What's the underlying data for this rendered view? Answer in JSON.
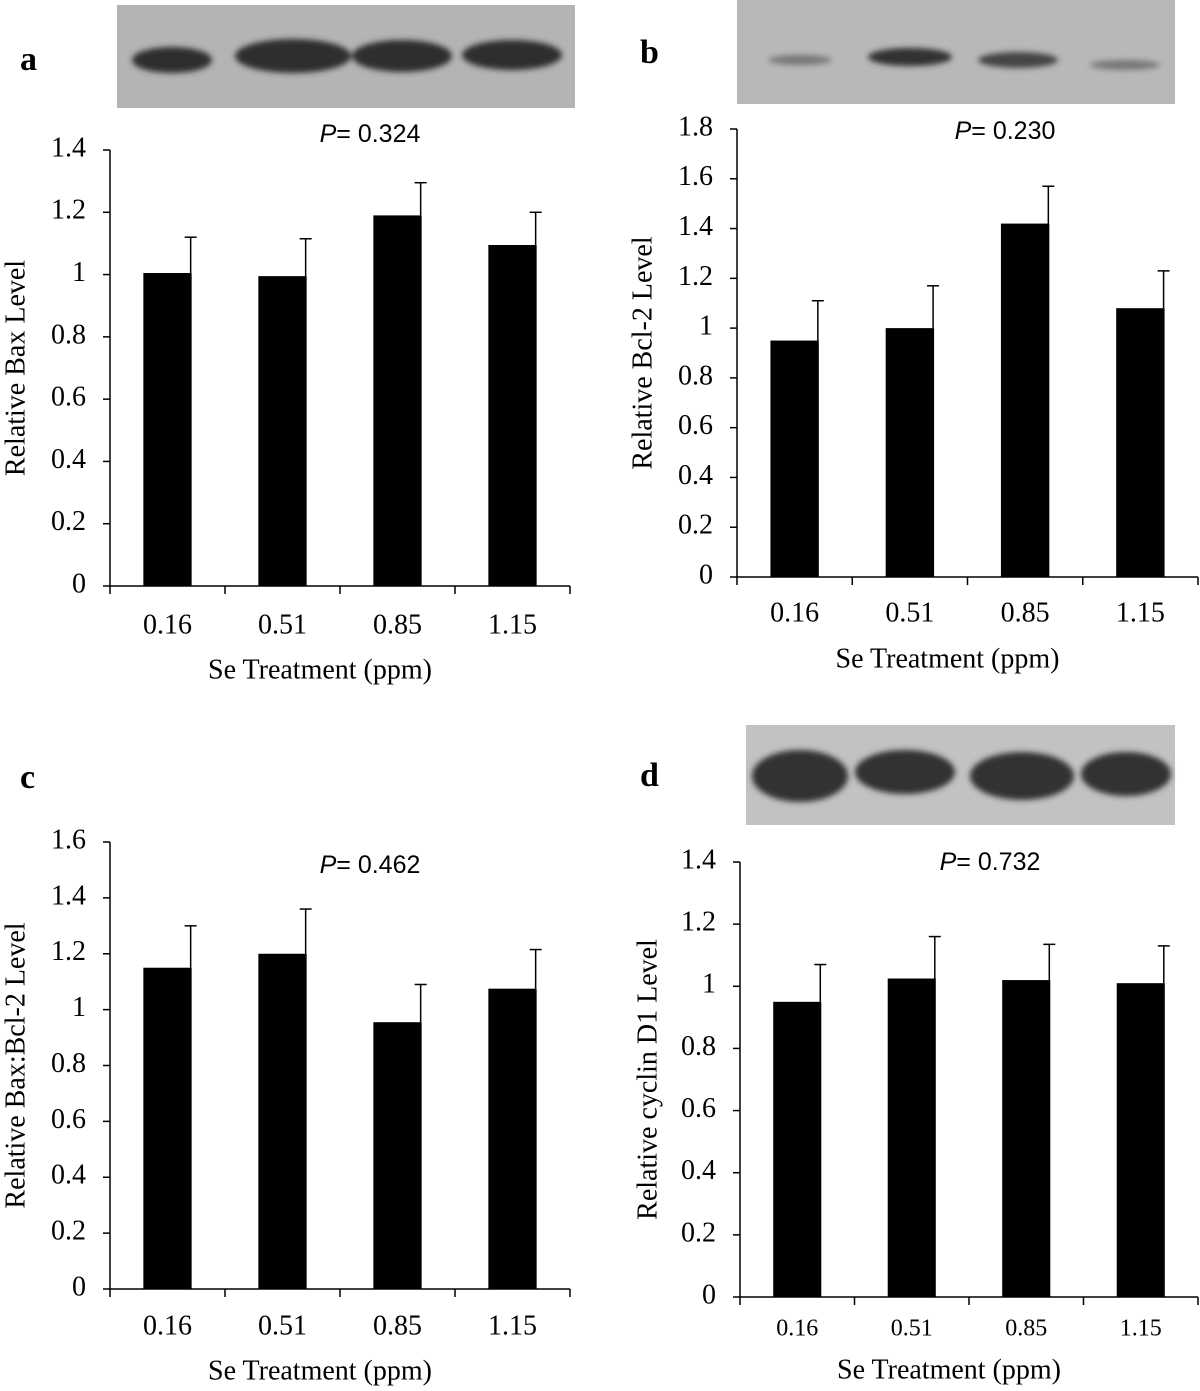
{
  "chart_data": [
    {
      "type": "bar",
      "panel_label": "a",
      "annotation": {
        "symbol": "P",
        "text": "= 0.324"
      },
      "y_label": "Relative Bax Level",
      "x_label": "Se Treatment (ppm)",
      "categories": [
        "0.16",
        "0.51",
        "0.85",
        "1.15"
      ],
      "values": [
        1.005,
        0.995,
        1.19,
        1.095
      ],
      "errors": [
        0.115,
        0.12,
        0.105,
        0.105
      ],
      "color": "#000000",
      "ylim": [
        0,
        1.4
      ],
      "yticks": [
        0,
        0.2,
        0.4,
        0.6,
        0.8,
        1,
        1.2,
        1.4
      ]
    },
    {
      "type": "bar",
      "panel_label": "b",
      "annotation": {
        "symbol": "P",
        "text": "= 0.230"
      },
      "y_label": "Relative Bcl-2 Level",
      "x_label": "Se Treatment (ppm)",
      "categories": [
        "0.16",
        "0.51",
        "0.85",
        "1.15"
      ],
      "values": [
        0.95,
        1.0,
        1.42,
        1.08
      ],
      "errors": [
        0.16,
        0.17,
        0.15,
        0.15
      ],
      "color": "#000000",
      "ylim": [
        0,
        1.8
      ],
      "yticks": [
        0,
        0.2,
        0.4,
        0.6,
        0.8,
        1,
        1.2,
        1.4,
        1.6,
        1.8
      ]
    },
    {
      "type": "bar",
      "panel_label": "c",
      "annotation": {
        "symbol": "P",
        "text": "= 0.462"
      },
      "y_label": "Relative Bax:Bcl-2 Level",
      "x_label": "Se Treatment (ppm)",
      "categories": [
        "0.16",
        "0.51",
        "0.85",
        "1.15"
      ],
      "values": [
        1.15,
        1.2,
        0.955,
        1.075
      ],
      "errors": [
        0.15,
        0.16,
        0.135,
        0.14
      ],
      "color": "#000000",
      "ylim": [
        0,
        1.6
      ],
      "yticks": [
        0,
        0.2,
        0.4,
        0.6,
        0.8,
        1,
        1.2,
        1.4,
        1.6
      ]
    },
    {
      "type": "bar",
      "panel_label": "d",
      "annotation": {
        "symbol": "P",
        "text": "= 0.732"
      },
      "y_label": "Relative cyclin D1 Level",
      "x_label": "Se Treatment (ppm)",
      "categories": [
        "0.16",
        "0.51",
        "0.85",
        "1.15"
      ],
      "values": [
        0.95,
        1.025,
        1.02,
        1.01
      ],
      "errors": [
        0.12,
        0.135,
        0.115,
        0.12
      ],
      "color": "#000000",
      "ylim": [
        0,
        1.4
      ],
      "yticks": [
        0,
        0.2,
        0.4,
        0.6,
        0.8,
        1,
        1.2,
        1.4
      ]
    }
  ]
}
